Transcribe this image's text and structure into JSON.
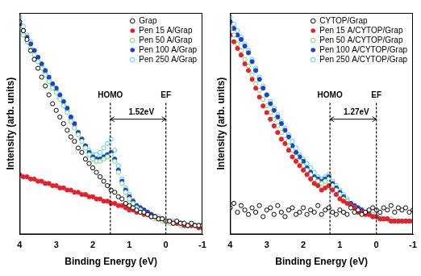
{
  "chart_data": [
    {
      "type": "scatter",
      "x_label": "Binding Energy (eV)",
      "y_label": "Intensity (arb. units)",
      "xlim": [
        4,
        -1
      ],
      "xticks": [
        4,
        3,
        2,
        1,
        0,
        -1
      ],
      "ylim": [
        0,
        10
      ],
      "tick_labels": "x",
      "grid": false,
      "legend": "upper right",
      "x": [
        4.0,
        3.9,
        3.8,
        3.7,
        3.6,
        3.5,
        3.4,
        3.3,
        3.2,
        3.1,
        3.0,
        2.9,
        2.8,
        2.7,
        2.6,
        2.5,
        2.4,
        2.3,
        2.2,
        2.1,
        2.0,
        1.9,
        1.8,
        1.7,
        1.6,
        1.5,
        1.4,
        1.3,
        1.2,
        1.1,
        1.0,
        0.9,
        0.8,
        0.7,
        0.6,
        0.5,
        0.4,
        0.3,
        0.2,
        0.1,
        0.0,
        -0.1,
        -0.2,
        -0.3,
        -0.4,
        -0.5,
        -0.6,
        -0.7,
        -0.8,
        -0.9,
        -1.0
      ],
      "series": [
        {
          "name": "Grap",
          "color": "#000000",
          "marker": "open",
          "values": [
            9.6,
            9.2,
            8.8,
            8.3,
            7.9,
            7.5,
            7.1,
            6.7,
            6.3,
            5.9,
            5.6,
            5.3,
            5.0,
            4.7,
            4.4,
            4.2,
            3.9,
            3.7,
            3.4,
            3.2,
            3.0,
            2.8,
            2.6,
            2.4,
            2.2,
            2.0,
            1.9,
            1.7,
            1.6,
            1.4,
            1.3,
            1.2,
            1.1,
            1.0,
            1.0,
            0.9,
            0.8,
            0.8,
            0.7,
            0.7,
            0.6,
            0.6,
            0.5,
            0.6,
            0.5,
            0.5,
            0.4,
            0.5,
            0.4,
            0.4,
            0.4
          ]
        },
        {
          "name": "Pen 15 A/Grap",
          "color": "#e8202a",
          "marker": "filled",
          "values": [
            2.7,
            2.6,
            2.6,
            2.5,
            2.5,
            2.4,
            2.4,
            2.3,
            2.3,
            2.2,
            2.2,
            2.1,
            2.1,
            2.0,
            2.0,
            1.9,
            1.9,
            1.8,
            1.8,
            1.7,
            1.7,
            1.6,
            1.6,
            1.5,
            1.5,
            1.4,
            1.4,
            1.3,
            1.3,
            1.2,
            1.1,
            1.1,
            1.0,
            1.0,
            0.9,
            0.9,
            0.8,
            0.8,
            0.7,
            0.7,
            0.6,
            0.6,
            0.5,
            0.5,
            0.5,
            0.4,
            0.4,
            0.4,
            0.4,
            0.3,
            0.3
          ]
        },
        {
          "name": "Pen 50 A/Grap",
          "color": "#66dd66",
          "marker": "open",
          "values": [
            9.3,
            9.0,
            8.7,
            8.4,
            8.1,
            7.8,
            7.5,
            7.2,
            6.9,
            6.6,
            6.4,
            6.1,
            5.8,
            5.5,
            5.1,
            4.8,
            4.5,
            4.2,
            3.9,
            3.6,
            3.4,
            3.3,
            3.3,
            3.4,
            3.5,
            3.6,
            3.3,
            2.8,
            2.3,
            1.9,
            1.6,
            1.4,
            1.2,
            1.1,
            1.0,
            0.9,
            0.8,
            0.7,
            0.7,
            0.6,
            0.6,
            0.5,
            0.5,
            0.5,
            0.4,
            0.4,
            0.4,
            0.4,
            0.4,
            0.3,
            0.3
          ]
        },
        {
          "name": "Pen 100 A/Grap",
          "color": "#1f3fd0",
          "marker": "filled",
          "values": [
            9.5,
            9.2,
            8.9,
            8.6,
            8.3,
            8.0,
            7.7,
            7.4,
            7.1,
            6.8,
            6.6,
            6.3,
            6.0,
            5.7,
            5.3,
            5.0,
            4.6,
            4.3,
            4.0,
            3.7,
            3.5,
            3.4,
            3.4,
            3.5,
            3.6,
            3.7,
            3.4,
            2.9,
            2.4,
            2.0,
            1.7,
            1.5,
            1.3,
            1.2,
            1.1,
            1.0,
            0.9,
            0.8,
            0.7,
            0.7,
            0.6,
            0.6,
            0.5,
            0.5,
            0.5,
            0.4,
            0.4,
            0.4,
            0.4,
            0.4,
            0.4
          ]
        },
        {
          "name": "Pen 250 A/Grap",
          "color": "#40d0e8",
          "marker": "open",
          "values": [
            9.8,
            9.4,
            9.0,
            8.7,
            8.3,
            8.0,
            7.6,
            7.3,
            7.0,
            6.7,
            6.5,
            6.2,
            5.9,
            5.6,
            5.2,
            4.9,
            4.6,
            4.3,
            4.0,
            3.8,
            3.6,
            3.6,
            3.7,
            3.9,
            4.1,
            4.3,
            3.8,
            3.1,
            2.5,
            2.1,
            1.8,
            1.5,
            1.3,
            1.2,
            1.1,
            1.0,
            0.9,
            0.8,
            0.8,
            0.7,
            0.6,
            0.6,
            0.6,
            0.5,
            0.5,
            0.5,
            0.4,
            0.4,
            0.4,
            0.4,
            0.4
          ]
        }
      ],
      "annotations": [
        {
          "text": "HOMO",
          "x": 1.52
        },
        {
          "text": "EF",
          "x": 0
        },
        {
          "text": "1.52eV",
          "x": [
            1.52,
            0
          ]
        }
      ]
    },
    {
      "type": "scatter",
      "x_label": "Binding Energy (eV)",
      "y_label": "Intensity (arb. units)",
      "xlim": [
        4,
        -1
      ],
      "xticks": [
        4,
        3,
        2,
        1,
        0,
        -1
      ],
      "ylim": [
        0,
        10
      ],
      "tick_labels": "x",
      "grid": false,
      "legend": "upper right",
      "x": [
        4.0,
        3.9,
        3.8,
        3.7,
        3.6,
        3.5,
        3.4,
        3.3,
        3.2,
        3.1,
        3.0,
        2.9,
        2.8,
        2.7,
        2.6,
        2.5,
        2.4,
        2.3,
        2.2,
        2.1,
        2.0,
        1.9,
        1.8,
        1.7,
        1.6,
        1.5,
        1.4,
        1.3,
        1.2,
        1.1,
        1.0,
        0.9,
        0.8,
        0.7,
        0.6,
        0.5,
        0.4,
        0.3,
        0.2,
        0.1,
        0.0,
        -0.1,
        -0.2,
        -0.3,
        -0.4,
        -0.5,
        -0.6,
        -0.7,
        -0.8,
        -0.9,
        -1.0
      ],
      "series": [
        {
          "name": "CYTOP/Grap",
          "color": "#000000",
          "marker": "open",
          "values": [
            1.2,
            1.4,
            1.0,
            1.3,
            1.1,
            0.9,
            1.2,
            1.0,
            1.3,
            0.8,
            1.1,
            1.2,
            0.9,
            1.3,
            1.0,
            0.8,
            1.1,
            1.2,
            0.9,
            1.0,
            1.2,
            0.9,
            1.1,
            1.0,
            1.3,
            0.9,
            1.1,
            1.2,
            1.0,
            0.9,
            1.1,
            1.0,
            0.9,
            1.2,
            1.0,
            1.1,
            0.9,
            1.0,
            1.1,
            1.2,
            1.1,
            1.0,
            1.2,
            1.1,
            1.3,
            1.0,
            1.2,
            1.1,
            1.2,
            1.0,
            1.1
          ]
        },
        {
          "name": "Pen 15 A/CYTOP/Grap",
          "color": "#e8202a",
          "marker": "filled",
          "values": [
            9.0,
            8.7,
            8.4,
            8.1,
            7.7,
            7.4,
            7.0,
            6.6,
            6.2,
            5.8,
            5.5,
            5.2,
            4.9,
            4.6,
            4.3,
            4.1,
            3.8,
            3.5,
            3.3,
            3.1,
            2.9,
            2.7,
            2.5,
            2.3,
            2.2,
            2.0,
            2.1,
            2.2,
            2.0,
            1.8,
            1.6,
            1.5,
            1.4,
            1.3,
            1.2,
            1.0,
            1.0,
            0.9,
            0.9,
            0.8,
            0.8,
            0.7,
            0.7,
            0.7,
            0.6,
            0.6,
            0.6,
            0.6,
            0.6,
            0.6,
            0.6
          ]
        },
        {
          "name": "Pen 50 A/CYTOP/Grap",
          "color": "#66dd66",
          "marker": "open",
          "values": [
            9.3,
            9.0,
            8.6,
            8.3,
            7.9,
            7.6,
            7.2,
            6.8,
            6.5,
            6.1,
            5.8,
            5.5,
            5.2,
            4.9,
            4.6,
            4.3,
            4.0,
            3.8,
            3.5,
            3.3,
            3.1,
            2.9,
            2.7,
            2.5,
            2.4,
            2.3,
            2.4,
            2.5,
            2.2,
            2.0,
            1.8,
            1.6,
            1.5,
            1.3,
            1.2,
            1.1,
            1.0,
            0.9,
            0.9,
            0.8,
            0.8,
            0.7,
            0.7,
            0.7,
            0.6,
            0.6,
            0.6,
            0.6,
            0.6,
            0.6,
            0.6
          ]
        },
        {
          "name": "Pen 100 A/CYTOP/Grap",
          "color": "#1f3fd0",
          "marker": "filled",
          "values": [
            9.6,
            9.3,
            9.0,
            8.8,
            8.5,
            8.2,
            7.8,
            7.4,
            7.0,
            6.6,
            6.3,
            5.9,
            5.6,
            5.3,
            5.0,
            4.7,
            4.4,
            4.0,
            3.7,
            3.5,
            3.3,
            3.0,
            2.8,
            2.6,
            2.5,
            2.4,
            2.5,
            2.6,
            2.3,
            2.1,
            1.9,
            1.7,
            1.5,
            1.4,
            1.3,
            1.2,
            1.1,
            1.0,
            0.9,
            0.8,
            0.8,
            0.7,
            0.7,
            0.7,
            0.6,
            0.6,
            0.6,
            0.6,
            0.6,
            0.6,
            0.6
          ]
        },
        {
          "name": "Pen 250 A/CYTOP/Grap",
          "color": "#40d0e8",
          "marker": "open",
          "values": [
            9.8,
            9.5,
            9.2,
            8.9,
            8.6,
            8.3,
            7.9,
            7.5,
            7.1,
            6.7,
            6.3,
            6.0,
            5.7,
            5.4,
            5.1,
            4.8,
            4.5,
            4.2,
            3.9,
            3.6,
            3.4,
            3.2,
            3.0,
            2.8,
            2.6,
            2.5,
            2.6,
            2.7,
            2.4,
            2.2,
            2.0,
            1.8,
            1.6,
            1.4,
            1.3,
            1.2,
            1.1,
            1.0,
            1.0,
            0.9,
            0.8,
            0.8,
            0.7,
            0.7,
            0.7,
            0.6,
            0.6,
            0.6,
            0.6,
            0.6,
            0.6
          ]
        }
      ],
      "annotations": [
        {
          "text": "HOMO",
          "x": 1.27
        },
        {
          "text": "EF",
          "x": 0
        },
        {
          "text": "1.27eV",
          "x": [
            1.27,
            0
          ]
        }
      ]
    }
  ]
}
